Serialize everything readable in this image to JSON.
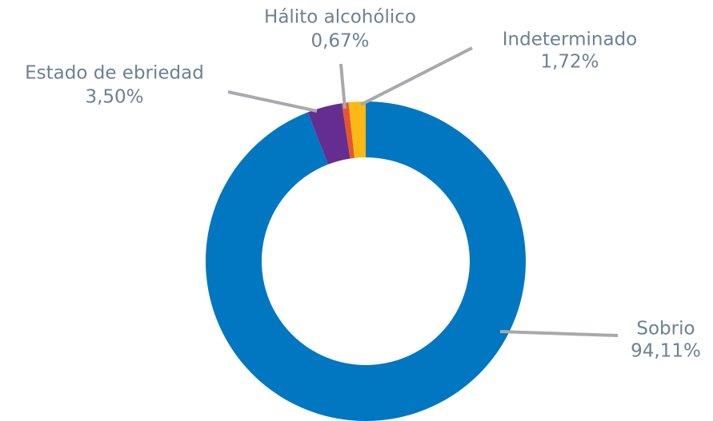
{
  "chart_data": {
    "type": "donut",
    "categories": [
      "Sobrio",
      "Estado de ebriedad",
      "Hálito alcohólico",
      "Indeterminado"
    ],
    "values": [
      94.11,
      3.5,
      0.67,
      1.72
    ],
    "value_labels": [
      "94,11%",
      "3,50%",
      "0,67%",
      "1,72%"
    ],
    "colors": [
      "#0077c0",
      "#662d91",
      "#e8542e",
      "#fdb913"
    ]
  }
}
